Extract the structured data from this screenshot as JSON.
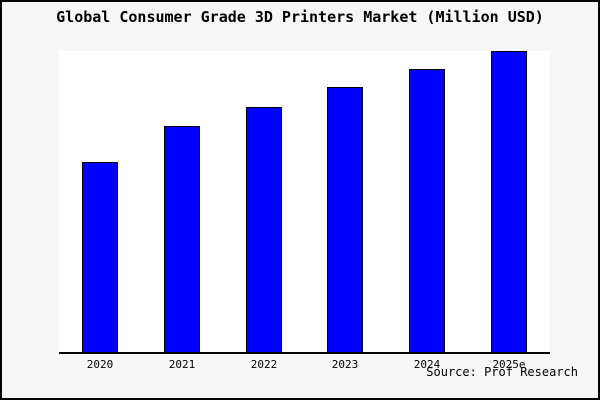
{
  "page": {
    "title": "Global Consumer Grade 3D Printers Market (Million USD)",
    "source_note": "Source: Prof Research"
  },
  "colors": {
    "page_background": "#f7f7f7",
    "plot_background": "#ffffff",
    "frame_border": "#000000",
    "axis_line": "#000000",
    "bar_fill": "#0000ff",
    "bar_border": "#000000",
    "text": "#000000"
  },
  "chart_data": {
    "type": "bar",
    "title": "Global Consumer Grade 3D Printers Market (Million USD)",
    "categories": [
      "2020",
      "2021",
      "2022",
      "2023",
      "2024",
      "2025e"
    ],
    "values": [
      63,
      75,
      81.5,
      88,
      94,
      100
    ],
    "value_note": "No y-axis tick labels are shown in the chart; values are relative bar heights normalized so that 2025e = 100.",
    "xlabel": "",
    "ylabel": "",
    "ylim": [
      0,
      100
    ],
    "grid": false,
    "legend": null,
    "source": "Source: Prof Research"
  }
}
